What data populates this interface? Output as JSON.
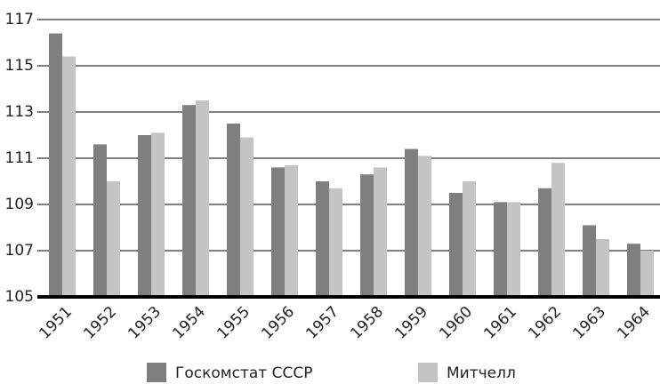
{
  "chart_data": {
    "type": "bar",
    "categories": [
      "1951",
      "1952",
      "1953",
      "1954",
      "1955",
      "1956",
      "1957",
      "1958",
      "1959",
      "1960",
      "1961",
      "1962",
      "1963",
      "1964"
    ],
    "series": [
      {
        "name": "Госкомстат СССР",
        "color": "#7f7f7f",
        "values": [
          116.4,
          111.6,
          112.0,
          113.3,
          112.5,
          110.6,
          110.0,
          110.3,
          111.4,
          109.5,
          109.1,
          109.7,
          108.1,
          107.3
        ]
      },
      {
        "name": "Митчелл",
        "color": "#c4c4c4",
        "values": [
          115.4,
          110.0,
          112.1,
          113.5,
          111.9,
          110.7,
          109.7,
          110.6,
          111.1,
          110.0,
          109.1,
          110.8,
          107.5,
          107.0
        ]
      }
    ],
    "ylim": [
      105,
      117
    ],
    "yticks": [
      105,
      107,
      109,
      111,
      113,
      115,
      117
    ],
    "grid": true
  }
}
